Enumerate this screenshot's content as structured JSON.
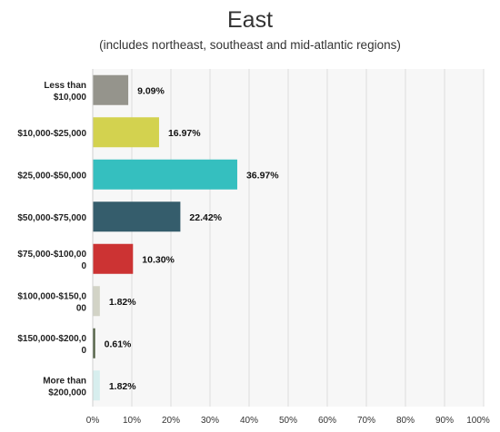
{
  "chart_data": {
    "type": "bar",
    "orientation": "horizontal",
    "title": "East",
    "subtitle": "(includes northeast, southeast and mid-atlantic regions)",
    "categories": [
      [
        "Less than",
        "$10,000"
      ],
      [
        "$10,000-$25,000"
      ],
      [
        "$25,000-$50,000"
      ],
      [
        "$50,000-$75,000"
      ],
      [
        "$75,000-$100,00",
        "0"
      ],
      [
        "$100,000-$150,0",
        "00"
      ],
      [
        "$150,000-$200,0",
        "0"
      ],
      [
        "More than",
        "$200,000"
      ]
    ],
    "values": [
      9.09,
      16.97,
      36.97,
      22.42,
      10.3,
      1.82,
      0.61,
      1.82
    ],
    "value_labels": [
      "9.09%",
      "16.97%",
      "36.97%",
      "22.42%",
      "10.30%",
      "1.82%",
      "0.61%",
      "1.82%"
    ],
    "colors": [
      "#95948c",
      "#d3d24f",
      "#35bfbf",
      "#355d6c",
      "#cc3333",
      "#d2d3c6",
      "#4a5a3c",
      "#d7eeee"
    ],
    "xlim": [
      0,
      100
    ],
    "xticks": [
      "0%",
      "10%",
      "20%",
      "30%",
      "40%",
      "50%",
      "60%",
      "70%",
      "80%",
      "90%",
      "100%"
    ],
    "grid": true
  }
}
